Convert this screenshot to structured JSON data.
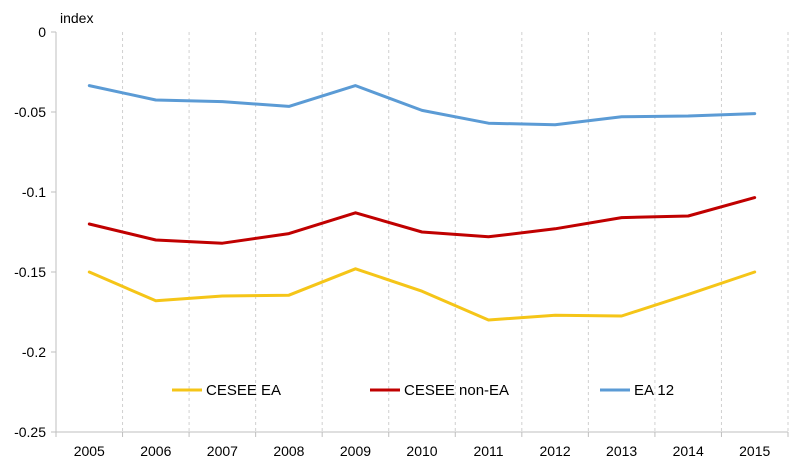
{
  "chart_data": {
    "type": "line",
    "unit_label": "index",
    "x": [
      "2005",
      "2006",
      "2007",
      "2008",
      "2009",
      "2010",
      "2011",
      "2012",
      "2013",
      "2014",
      "2015"
    ],
    "ylim": [
      -0.25,
      0
    ],
    "yticks": [
      0,
      -0.05,
      -0.1,
      -0.15,
      -0.2,
      -0.25
    ],
    "ytick_labels": [
      "0",
      "-0.05",
      "-0.1",
      "-0.15",
      "-0.2",
      "-0.25"
    ],
    "grid": "vertical dashed",
    "legend_position": "bottom",
    "series": [
      {
        "name": "CESEE EA",
        "color": "#f5c518",
        "values": [
          -0.15,
          -0.168,
          -0.165,
          -0.1645,
          -0.148,
          -0.162,
          -0.18,
          -0.177,
          -0.1775,
          -0.164,
          -0.15
        ]
      },
      {
        "name": "CESEE non-EA",
        "color": "#c00000",
        "values": [
          -0.12,
          -0.13,
          -0.132,
          -0.126,
          -0.113,
          -0.125,
          -0.128,
          -0.123,
          -0.116,
          -0.115,
          -0.1035
        ]
      },
      {
        "name": "EA 12",
        "color": "#5b9bd5",
        "values": [
          -0.0335,
          -0.0425,
          -0.0435,
          -0.0465,
          -0.0335,
          -0.049,
          -0.057,
          -0.058,
          -0.053,
          -0.0525,
          -0.051
        ]
      }
    ]
  }
}
